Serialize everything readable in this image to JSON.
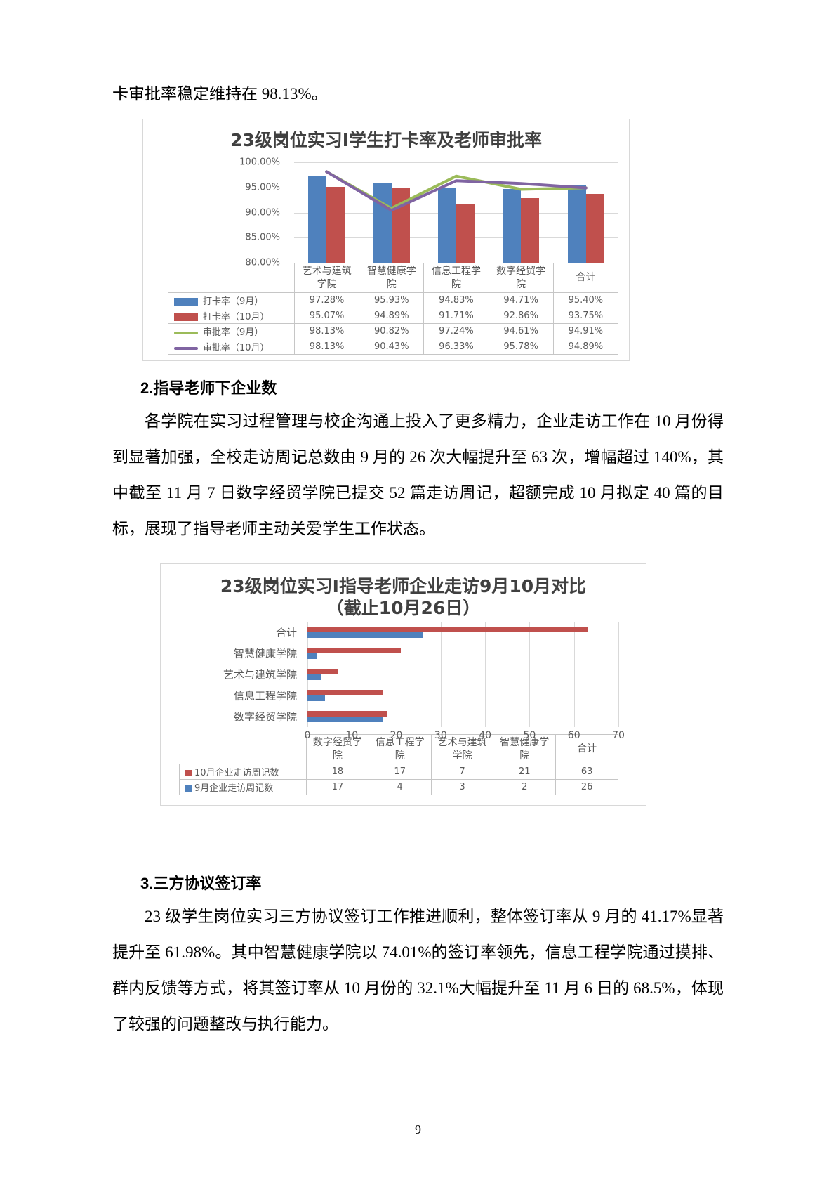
{
  "page": {
    "number": "9",
    "intro_text": "卡审批率稳定维持在 98.13%。"
  },
  "sections": {
    "s2": {
      "heading": "2.指导老师下企业数",
      "paragraph": "各学院在实习过程管理与校企沟通上投入了更多精力，企业走访工作在 10 月份得到显著加强，全校走访周记总数由 9 月的 26 次大幅提升至 63 次，增幅超过 140%，其中截至 11 月 7 日数字经贸学院已提交 52 篇走访周记，超额完成 10 月拟定 40 篇的目标，展现了指导老师主动关爱学生工作状态。"
    },
    "s3": {
      "heading": "3.三方协议签订率",
      "paragraph": "23 级学生岗位实习三方协议签订工作推进顺利，整体签订率从 9 月的 41.17%显著提升至 61.98%。其中智慧健康学院以 74.01%的签订率领先，信息工程学院通过摸排、群内反馈等方式，将其签订率从 10 月份的 32.1%大幅提升至 11 月 6 日的 68.5%，体现了较强的问题整改与执行能力。"
    }
  },
  "chart_data": [
    {
      "type": "bar",
      "subtype": "combo-column-line",
      "title": "23级岗位实习I学生打卡率及老师审批率",
      "categories": [
        "艺术与建筑学院",
        "智慧健康学院",
        "信息工程学院",
        "数字经贸学院",
        "合计"
      ],
      "series": [
        {
          "name": "打卡率（9月）",
          "kind": "bar",
          "color": "#4F81BD",
          "values": [
            97.28,
            95.93,
            94.83,
            94.71,
            95.4
          ],
          "labels": [
            "97.28%",
            "95.93%",
            "94.83%",
            "94.71%",
            "95.40%"
          ]
        },
        {
          "name": "打卡率（10月）",
          "kind": "bar",
          "color": "#C0504D",
          "values": [
            95.07,
            94.89,
            91.71,
            92.86,
            93.75
          ],
          "labels": [
            "95.07%",
            "94.89%",
            "91.71%",
            "92.86%",
            "93.75%"
          ]
        },
        {
          "name": "审批率（9月）",
          "kind": "line",
          "color": "#9BBB59",
          "values": [
            98.13,
            90.82,
            97.24,
            94.61,
            94.91
          ],
          "labels": [
            "98.13%",
            "90.82%",
            "97.24%",
            "94.61%",
            "94.91%"
          ]
        },
        {
          "name": "审批率（10月）",
          "kind": "line",
          "color": "#8064A2",
          "values": [
            98.13,
            90.43,
            96.33,
            95.78,
            94.89
          ],
          "labels": [
            "98.13%",
            "90.43%",
            "96.33%",
            "95.78%",
            "94.89%"
          ]
        }
      ],
      "ylim": [
        80,
        100
      ],
      "yticks": [
        "100.00%",
        "95.00%",
        "90.00%",
        "85.00%",
        "80.00%"
      ],
      "grid": true,
      "legend_position": "table-left"
    },
    {
      "type": "bar",
      "orientation": "horizontal",
      "title": "23级岗位实习I指导老师企业走访9月10月对比",
      "subtitle": "（截止10月26日）",
      "axis_categories": [
        "合计",
        "智慧健康学院",
        "艺术与建筑学院",
        "信息工程学院",
        "数字经贸学院"
      ],
      "table_categories": [
        "数字经贸学院",
        "信息工程学院",
        "艺术与建筑学院",
        "智慧健康学院",
        "合计"
      ],
      "series": [
        {
          "name": "10月企业走访周记数",
          "color": "#C0504D",
          "values": [
            18,
            17,
            7,
            21,
            63
          ]
        },
        {
          "name": "9月企业走访周记数",
          "color": "#4F81BD",
          "values": [
            17,
            4,
            3,
            2,
            26
          ]
        }
      ],
      "xlim": [
        0,
        70
      ],
      "xticks": [
        0,
        10,
        20,
        30,
        40,
        50,
        60,
        70
      ],
      "grid": true,
      "legend_position": "table-left"
    }
  ]
}
